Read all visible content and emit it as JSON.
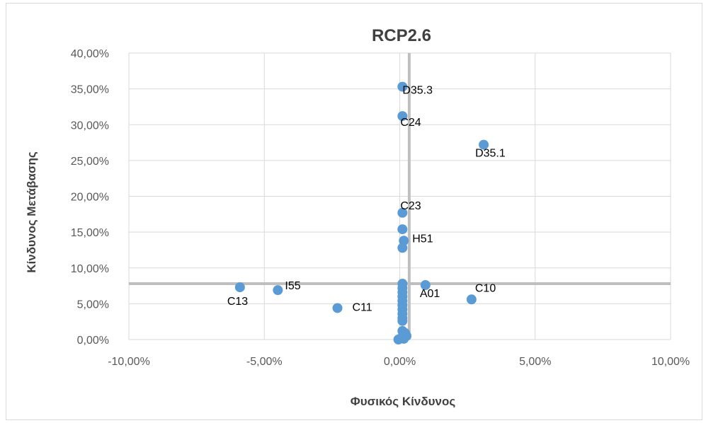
{
  "chart_data": {
    "type": "scatter",
    "title": "RCP2.6",
    "xlabel": "Φυσικός Κίνδυνος",
    "ylabel": "Κίνδυνος Μετάβασης",
    "xlim": [
      -10,
      10
    ],
    "ylim": [
      0,
      40
    ],
    "x_ticks": [
      "-10,00%",
      "-5,00%",
      "0,00%",
      "5,00%",
      "10,00%"
    ],
    "y_ticks": [
      "0,00%",
      "5,00%",
      "10,00%",
      "15,00%",
      "20,00%",
      "25,00%",
      "30,00%",
      "35,00%",
      "40,00%"
    ],
    "grid": true,
    "reference_lines": {
      "x": 0.35,
      "y": 7.8
    },
    "marker_color": "#5b9bd5",
    "reference_line_color": "#bfbfbf",
    "points": [
      {
        "x": 0.1,
        "y": 35.3,
        "label": "D35.3"
      },
      {
        "x": 0.1,
        "y": 31.2,
        "label": "C24"
      },
      {
        "x": 3.1,
        "y": 27.2,
        "label": "D35.1"
      },
      {
        "x": 0.1,
        "y": 17.7,
        "label": "C23"
      },
      {
        "x": 0.1,
        "y": 15.4,
        "label": ""
      },
      {
        "x": 0.15,
        "y": 13.8,
        "label": "H51"
      },
      {
        "x": 0.1,
        "y": 12.8,
        "label": ""
      },
      {
        "x": 0.95,
        "y": 7.6,
        "label": "A01"
      },
      {
        "x": 2.65,
        "y": 5.6,
        "label": "C10"
      },
      {
        "x": -5.9,
        "y": 7.3,
        "label": "C13"
      },
      {
        "x": -4.5,
        "y": 6.9,
        "label": "I55"
      },
      {
        "x": -2.3,
        "y": 4.4,
        "label": "C11"
      },
      {
        "x": 0.1,
        "y": 7.8,
        "label": ""
      },
      {
        "x": 0.1,
        "y": 7.2,
        "label": ""
      },
      {
        "x": 0.1,
        "y": 6.6,
        "label": ""
      },
      {
        "x": 0.1,
        "y": 6.0,
        "label": ""
      },
      {
        "x": 0.1,
        "y": 5.4,
        "label": ""
      },
      {
        "x": 0.1,
        "y": 4.8,
        "label": ""
      },
      {
        "x": 0.1,
        "y": 4.2,
        "label": ""
      },
      {
        "x": 0.1,
        "y": 3.6,
        "label": ""
      },
      {
        "x": 0.1,
        "y": 3.0,
        "label": ""
      },
      {
        "x": 0.1,
        "y": 2.6,
        "label": ""
      },
      {
        "x": 0.1,
        "y": 1.2,
        "label": ""
      },
      {
        "x": 0.2,
        "y": 0.9,
        "label": ""
      },
      {
        "x": 0.25,
        "y": 0.5,
        "label": ""
      },
      {
        "x": 0.1,
        "y": 0.3,
        "label": ""
      },
      {
        "x": 0.0,
        "y": 0.1,
        "label": ""
      },
      {
        "x": -0.05,
        "y": 0.0,
        "label": ""
      },
      {
        "x": 0.15,
        "y": 0.1,
        "label": ""
      }
    ]
  }
}
